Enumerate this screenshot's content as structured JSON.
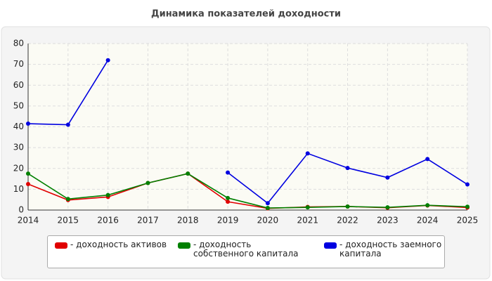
{
  "chart_data": {
    "type": "line",
    "title": "Динамика показателей доходности",
    "x": [
      2014,
      2015,
      2016,
      2017,
      2018,
      2019,
      2020,
      2021,
      2022,
      2023,
      2024,
      2025
    ],
    "xlim": [
      2014,
      2025
    ],
    "xticks": [
      2014,
      2015,
      2016,
      2017,
      2018,
      2019,
      2020,
      2021,
      2022,
      2023,
      2024,
      2025
    ],
    "ylim": [
      0,
      80
    ],
    "yticks": [
      0,
      10,
      20,
      30,
      40,
      50,
      60,
      70,
      80
    ],
    "grid": true,
    "series": [
      {
        "name": "- доходность активов",
        "color": "#e00000",
        "values": [
          12.5,
          4.8,
          6.3,
          13,
          17.5,
          4,
          0.8,
          1.5,
          1.7,
          1.1,
          2.2,
          1.2
        ]
      },
      {
        "name": "- доходность собственного капитала",
        "color": "#008000",
        "values": [
          17.5,
          5.3,
          7.2,
          13,
          17.5,
          5.8,
          1,
          1.3,
          1.7,
          1.3,
          2.3,
          1.6
        ]
      },
      {
        "name": "- доходность заемного капитала",
        "color": "#0000e0",
        "values": [
          41.5,
          41,
          72,
          null,
          null,
          18,
          3.3,
          27.2,
          20.2,
          15.6,
          24.5,
          12.3
        ]
      }
    ]
  }
}
